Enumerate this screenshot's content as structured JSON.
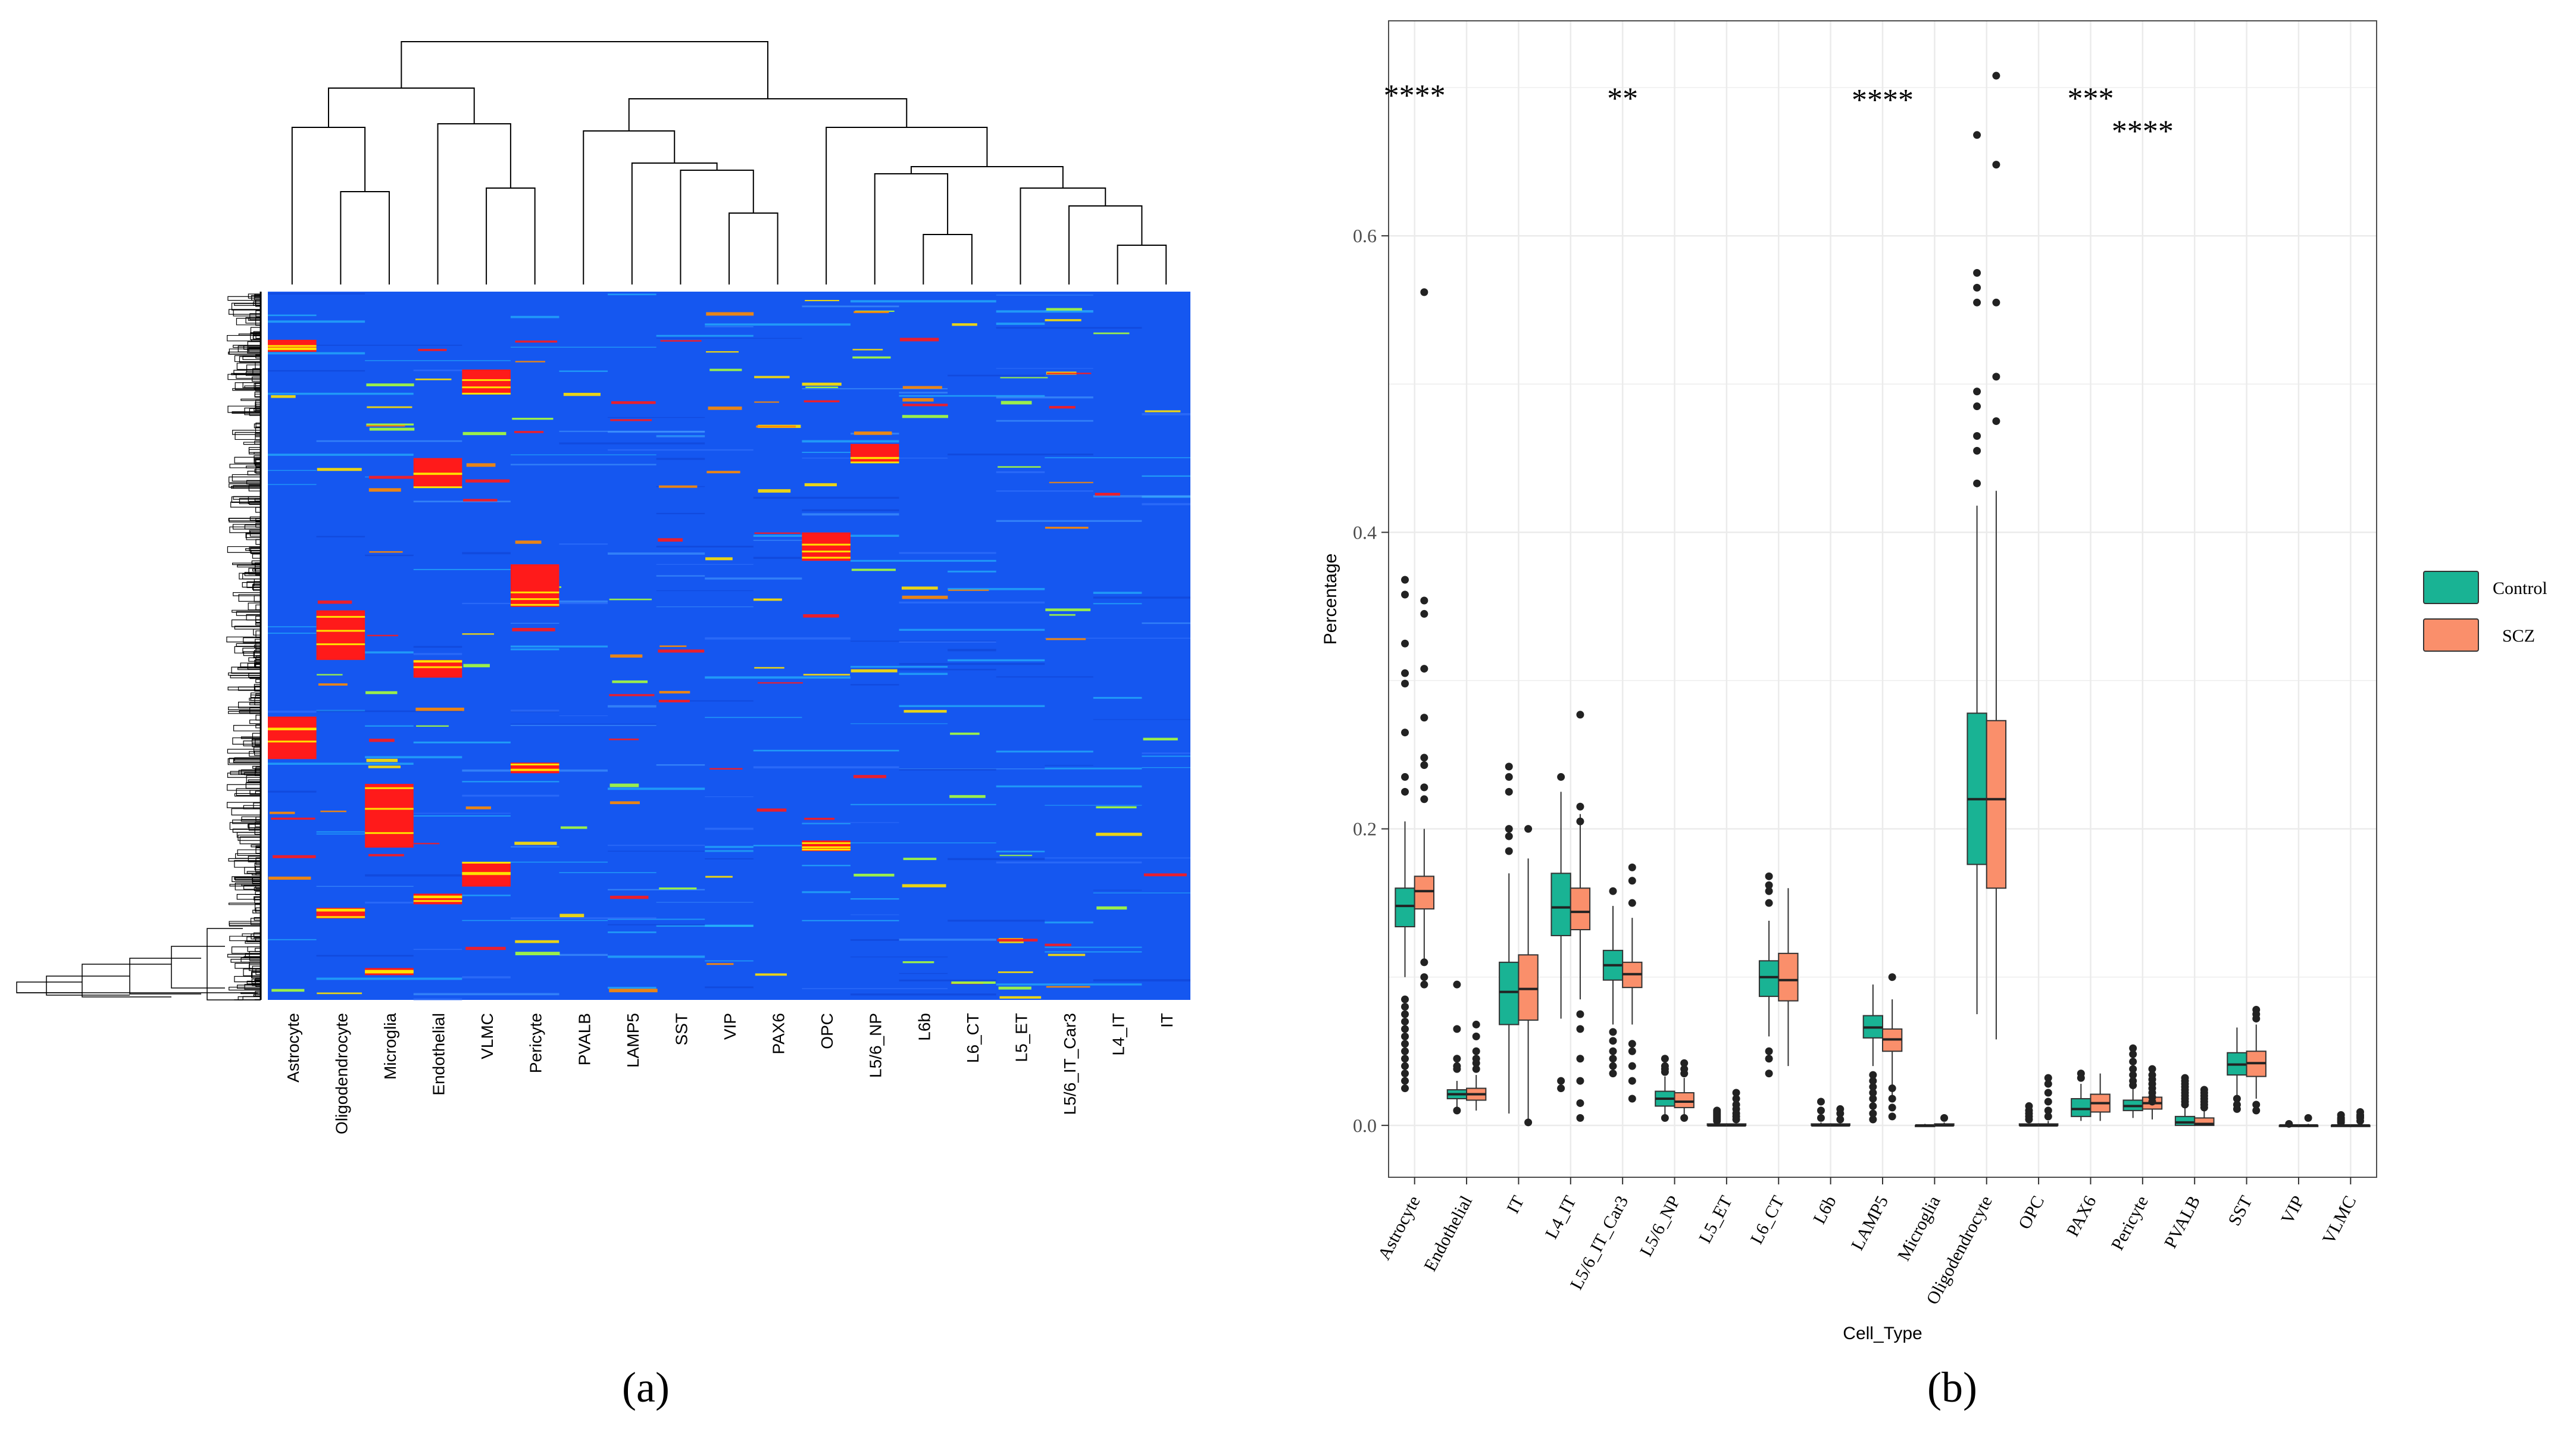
{
  "panel_labels": {
    "a": "(a)",
    "b": "(b)"
  },
  "colors": {
    "heat_low": "#1557f0",
    "heat_mid_cyan": "#2ad0ff",
    "heat_mid_green": "#a8ff3a",
    "heat_mid_yellow": "#ffe100",
    "heat_high": "#ff1a1a",
    "control": "#19b394",
    "scz": "#fa8f6b",
    "grid": "#ebebeb",
    "frame": "#4d4d4d"
  },
  "chart_data": [
    {
      "type": "heatmap",
      "title": "",
      "columns": [
        "Astrocyte",
        "Oligodendrocyte",
        "Microglia",
        "Endothelial",
        "VLMC",
        "Pericyte",
        "PVALB",
        "LAMP5",
        "SST",
        "VIP",
        "PAX6",
        "OPC",
        "L5/6_NP",
        "L6b",
        "L6_CT",
        "L5_ET",
        "L5/6_IT_Car3",
        "L4_IT",
        "IT"
      ],
      "column_dendrogram": [
        {
          "a": 1,
          "b": 2,
          "height": 0.26
        },
        {
          "a": 4,
          "b": 5,
          "height": 0.27
        },
        {
          "a": 9,
          "b": 10,
          "height": 0.2
        },
        {
          "a": 8,
          "b": "9-10",
          "height": 0.32
        },
        {
          "a": 7,
          "b": "8-10",
          "height": 0.34
        },
        {
          "a": 6,
          "b": "7-10",
          "height": 0.43
        },
        {
          "a": 13,
          "b": 14,
          "height": 0.14
        },
        {
          "a": 17,
          "b": 18,
          "height": 0.11
        },
        {
          "a": 16,
          "b": "17-18",
          "height": 0.22
        },
        {
          "a": 15,
          "b": "16-18",
          "height": 0.27
        },
        {
          "a": 12,
          "b": "13-14",
          "height": 0.31
        },
        {
          "a": "12-14",
          "b": "15-18",
          "height": 0.33
        },
        {
          "a": 11,
          "b": "12-18",
          "height": 0.44
        },
        {
          "a": "6-10",
          "b": "11-18",
          "height": 0.52
        },
        {
          "a": 0,
          "b": "1-2",
          "height": 0.44
        },
        {
          "a": 3,
          "b": "4-5",
          "height": 0.45
        },
        {
          "a": "0-2",
          "b": "3-5",
          "height": 0.55
        },
        {
          "a": "0-5",
          "b": "6-18",
          "height": 0.68
        }
      ],
      "high_expression_blocks": [
        {
          "column": "Astrocyte",
          "rows": [
            [
              0.068,
              0.085
            ],
            [
              0.6,
              0.66
            ]
          ]
        },
        {
          "column": "Oligodendrocyte",
          "rows": [
            [
              0.45,
              0.52
            ],
            [
              0.87,
              0.885
            ]
          ]
        },
        {
          "column": "Microglia",
          "rows": [
            [
              0.695,
              0.785
            ],
            [
              0.955,
              0.965
            ]
          ]
        },
        {
          "column": "Endothelial",
          "rows": [
            [
              0.235,
              0.275
            ],
            [
              0.52,
              0.545
            ],
            [
              0.85,
              0.865
            ]
          ]
        },
        {
          "column": "VLMC",
          "rows": [
            [
              0.11,
              0.145
            ],
            [
              0.805,
              0.84
            ]
          ]
        },
        {
          "column": "Pericyte",
          "rows": [
            [
              0.385,
              0.445
            ],
            [
              0.665,
              0.68
            ]
          ]
        },
        {
          "column": "OPC",
          "rows": [
            [
              0.34,
              0.38
            ],
            [
              0.775,
              0.79
            ]
          ]
        },
        {
          "column": "L5/6_NP",
          "rows": [
            [
              0.215,
              0.24
            ]
          ]
        }
      ]
    },
    {
      "type": "box",
      "xlabel": "Cell_Type",
      "ylabel": "Percentage",
      "ylim": [
        -0.035,
        0.745
      ],
      "yticks": [
        "0.0",
        "0.2",
        "0.4",
        "0.6"
      ],
      "grid": true,
      "legend": {
        "position": "right",
        "entries": [
          "Control",
          "SCZ"
        ]
      },
      "categories": [
        "Astrocyte",
        "Endothelial",
        "IT",
        "L4_IT",
        "L5/6_IT_Car3",
        "L5/6_NP",
        "L5_ET",
        "L6_CT",
        "L6b",
        "LAMP5",
        "Microglia",
        "Oligodendrocyte",
        "OPC",
        "PAX6",
        "Pericyte",
        "PVALB",
        "SST",
        "VIP",
        "VLMC"
      ],
      "significance": [
        {
          "category": "Astrocyte",
          "label": "****",
          "y": 0.695
        },
        {
          "category": "L5/6_IT_Car3",
          "label": "**",
          "y": 0.693
        },
        {
          "category": "LAMP5",
          "label": "****",
          "y": 0.692
        },
        {
          "category": "PAX6",
          "label": "***",
          "y": 0.693
        },
        {
          "category": "Pericyte",
          "label": "****",
          "y": 0.671
        }
      ],
      "series": [
        {
          "name": "Control",
          "boxes": [
            {
              "category": "Astrocyte",
              "min": 0.1,
              "q1": 0.134,
              "median": 0.148,
              "q3": 0.16,
              "max": 0.205,
              "outliers": [
                0.368,
                0.358,
                0.325,
                0.305,
                0.298,
                0.265,
                0.235,
                0.225,
                0.085,
                0.08,
                0.075,
                0.07,
                0.065,
                0.06,
                0.055,
                0.05,
                0.045,
                0.04,
                0.035,
                0.03,
                0.025
              ]
            },
            {
              "category": "Endothelial",
              "min": 0.012,
              "q1": 0.018,
              "median": 0.021,
              "q3": 0.024,
              "max": 0.03,
              "outliers": [
                0.095,
                0.065,
                0.045,
                0.04,
                0.038,
                0.01
              ]
            },
            {
              "category": "IT",
              "min": 0.008,
              "q1": 0.068,
              "median": 0.09,
              "q3": 0.11,
              "max": 0.17,
              "outliers": [
                0.242,
                0.235,
                0.225,
                0.2,
                0.195,
                0.185
              ]
            },
            {
              "category": "L4_IT",
              "min": 0.072,
              "q1": 0.128,
              "median": 0.147,
              "q3": 0.17,
              "max": 0.225,
              "outliers": [
                0.235,
                0.03,
                0.025
              ]
            },
            {
              "category": "L5/6_IT_Car3",
              "min": 0.068,
              "q1": 0.098,
              "median": 0.108,
              "q3": 0.118,
              "max": 0.148,
              "outliers": [
                0.158,
                0.063,
                0.057,
                0.05,
                0.045,
                0.04,
                0.035
              ]
            },
            {
              "category": "L5/6_NP",
              "min": 0.006,
              "q1": 0.013,
              "median": 0.018,
              "q3": 0.023,
              "max": 0.033,
              "outliers": [
                0.045,
                0.04,
                0.038,
                0.036,
                0.005
              ]
            },
            {
              "category": "L5_ET",
              "min": 0.0,
              "q1": 0.0,
              "median": 0.0,
              "q3": 0.001,
              "max": 0.002,
              "outliers": [
                0.01,
                0.009,
                0.008,
                0.007,
                0.006,
                0.005,
                0.004,
                0.003
              ]
            },
            {
              "category": "L6_CT",
              "min": 0.06,
              "q1": 0.087,
              "median": 0.1,
              "q3": 0.111,
              "max": 0.138,
              "outliers": [
                0.168,
                0.162,
                0.158,
                0.15,
                0.05,
                0.045,
                0.035
              ]
            },
            {
              "category": "L6b",
              "min": 0.0,
              "q1": 0.0,
              "median": 0.0,
              "q3": 0.001,
              "max": 0.002,
              "outliers": [
                0.016,
                0.01,
                0.005
              ]
            },
            {
              "category": "LAMP5",
              "min": 0.04,
              "q1": 0.059,
              "median": 0.066,
              "q3": 0.074,
              "max": 0.095,
              "outliers": [
                0.034,
                0.03,
                0.026,
                0.022,
                0.018,
                0.013,
                0.008,
                0.004
              ]
            },
            {
              "category": "Microglia",
              "min": 0.0,
              "q1": 0.0,
              "median": 0.0,
              "q3": 0.0,
              "max": 0.001,
              "outliers": []
            },
            {
              "category": "Oligodendrocyte",
              "min": 0.075,
              "q1": 0.176,
              "median": 0.22,
              "q3": 0.278,
              "max": 0.418,
              "outliers": [
                0.668,
                0.575,
                0.565,
                0.555,
                0.495,
                0.485,
                0.465,
                0.455,
                0.433
              ]
            },
            {
              "category": "OPC",
              "min": 0.0,
              "q1": 0.0,
              "median": 0.0,
              "q3": 0.001,
              "max": 0.002,
              "outliers": [
                0.013,
                0.01,
                0.008,
                0.006,
                0.004
              ]
            },
            {
              "category": "PAX6",
              "min": 0.003,
              "q1": 0.006,
              "median": 0.011,
              "q3": 0.018,
              "max": 0.028,
              "outliers": [
                0.035,
                0.032
              ]
            },
            {
              "category": "Pericyte",
              "min": 0.005,
              "q1": 0.01,
              "median": 0.013,
              "q3": 0.017,
              "max": 0.025,
              "outliers": [
                0.052,
                0.048,
                0.043,
                0.038,
                0.034,
                0.03,
                0.027
              ]
            },
            {
              "category": "PVALB",
              "min": 0.0,
              "q1": 0.0,
              "median": 0.002,
              "q3": 0.006,
              "max": 0.012,
              "outliers": [
                0.032,
                0.03,
                0.028,
                0.026,
                0.024,
                0.022,
                0.02,
                0.018,
                0.016,
                0.014
              ]
            },
            {
              "category": "SST",
              "min": 0.02,
              "q1": 0.034,
              "median": 0.041,
              "q3": 0.049,
              "max": 0.066,
              "outliers": [
                0.018,
                0.014,
                0.011
              ]
            },
            {
              "category": "VIP",
              "min": 0.0,
              "q1": 0.0,
              "median": 0.0,
              "q3": 0.0,
              "max": 0.0,
              "outliers": [
                0.001
              ]
            },
            {
              "category": "VLMC",
              "min": 0.0,
              "q1": 0.0,
              "median": 0.0,
              "q3": 0.0,
              "max": 0.001,
              "outliers": [
                0.007,
                0.005,
                0.004,
                0.003,
                0.002
              ]
            }
          ]
        },
        {
          "name": "SCZ",
          "boxes": [
            {
              "category": "Astrocyte",
              "min": 0.11,
              "q1": 0.146,
              "median": 0.158,
              "q3": 0.168,
              "max": 0.2,
              "outliers": [
                0.562,
                0.354,
                0.345,
                0.308,
                0.275,
                0.248,
                0.243,
                0.228,
                0.22,
                0.11,
                0.1,
                0.095
              ]
            },
            {
              "category": "Endothelial",
              "min": 0.01,
              "q1": 0.017,
              "median": 0.021,
              "q3": 0.025,
              "max": 0.034,
              "outliers": [
                0.068,
                0.06,
                0.05,
                0.045,
                0.042,
                0.038
              ]
            },
            {
              "category": "IT",
              "min": 0.0,
              "q1": 0.071,
              "median": 0.092,
              "q3": 0.115,
              "max": 0.18,
              "outliers": [
                0.2,
                0.002
              ]
            },
            {
              "category": "L4_IT",
              "min": 0.085,
              "q1": 0.132,
              "median": 0.144,
              "q3": 0.16,
              "max": 0.21,
              "outliers": [
                0.277,
                0.215,
                0.205,
                0.075,
                0.065,
                0.045,
                0.03,
                0.015,
                0.005
              ]
            },
            {
              "category": "L5/6_IT_Car3",
              "min": 0.068,
              "q1": 0.093,
              "median": 0.102,
              "q3": 0.11,
              "max": 0.14,
              "outliers": [
                0.174,
                0.165,
                0.15,
                0.055,
                0.05,
                0.04,
                0.03,
                0.018
              ]
            },
            {
              "category": "L5/6_NP",
              "min": 0.007,
              "q1": 0.012,
              "median": 0.016,
              "q3": 0.022,
              "max": 0.032,
              "outliers": [
                0.042,
                0.038,
                0.035,
                0.005
              ]
            },
            {
              "category": "L5_ET",
              "min": 0.0,
              "q1": 0.0,
              "median": 0.0,
              "q3": 0.001,
              "max": 0.002,
              "outliers": [
                0.022,
                0.018,
                0.014,
                0.011,
                0.008,
                0.006,
                0.004
              ]
            },
            {
              "category": "L6_CT",
              "min": 0.04,
              "q1": 0.084,
              "median": 0.098,
              "q3": 0.116,
              "max": 0.16,
              "outliers": []
            },
            {
              "category": "L6b",
              "min": 0.0,
              "q1": 0.0,
              "median": 0.0,
              "q3": 0.001,
              "max": 0.002,
              "outliers": [
                0.011,
                0.008,
                0.004
              ]
            },
            {
              "category": "LAMP5",
              "min": 0.02,
              "q1": 0.05,
              "median": 0.058,
              "q3": 0.065,
              "max": 0.085,
              "outliers": [
                0.1,
                0.025,
                0.018,
                0.012,
                0.006
              ]
            },
            {
              "category": "Microglia",
              "min": 0.0,
              "q1": 0.0,
              "median": 0.0,
              "q3": 0.001,
              "max": 0.002,
              "outliers": [
                0.005
              ]
            },
            {
              "category": "Oligodendrocyte",
              "min": 0.058,
              "q1": 0.16,
              "median": 0.22,
              "q3": 0.273,
              "max": 0.428,
              "outliers": [
                0.708,
                0.648,
                0.555,
                0.505,
                0.475
              ]
            },
            {
              "category": "OPC",
              "min": 0.0,
              "q1": 0.0,
              "median": 0.0,
              "q3": 0.001,
              "max": 0.003,
              "outliers": [
                0.032,
                0.028,
                0.022,
                0.016,
                0.01,
                0.006
              ]
            },
            {
              "category": "PAX6",
              "min": 0.003,
              "q1": 0.009,
              "median": 0.015,
              "q3": 0.021,
              "max": 0.035,
              "outliers": []
            },
            {
              "category": "Pericyte",
              "min": 0.004,
              "q1": 0.011,
              "median": 0.015,
              "q3": 0.019,
              "max": 0.028,
              "outliers": [
                0.038,
                0.034,
                0.031,
                0.028,
                0.025,
                0.022,
                0.019,
                0.016
              ]
            },
            {
              "category": "PVALB",
              "min": 0.0,
              "q1": 0.0,
              "median": 0.001,
              "q3": 0.005,
              "max": 0.01,
              "outliers": [
                0.024,
                0.022,
                0.02,
                0.018,
                0.016,
                0.014,
                0.012
              ]
            },
            {
              "category": "SST",
              "min": 0.018,
              "q1": 0.033,
              "median": 0.042,
              "q3": 0.05,
              "max": 0.068,
              "outliers": [
                0.078,
                0.075,
                0.072,
                0.014,
                0.01
              ]
            },
            {
              "category": "VIP",
              "min": 0.0,
              "q1": 0.0,
              "median": 0.0,
              "q3": 0.0,
              "max": 0.001,
              "outliers": [
                0.005
              ]
            },
            {
              "category": "VLMC",
              "min": 0.0,
              "q1": 0.0,
              "median": 0.0,
              "q3": 0.0,
              "max": 0.001,
              "outliers": [
                0.009,
                0.007,
                0.006,
                0.005,
                0.003
              ]
            }
          ]
        }
      ]
    }
  ]
}
